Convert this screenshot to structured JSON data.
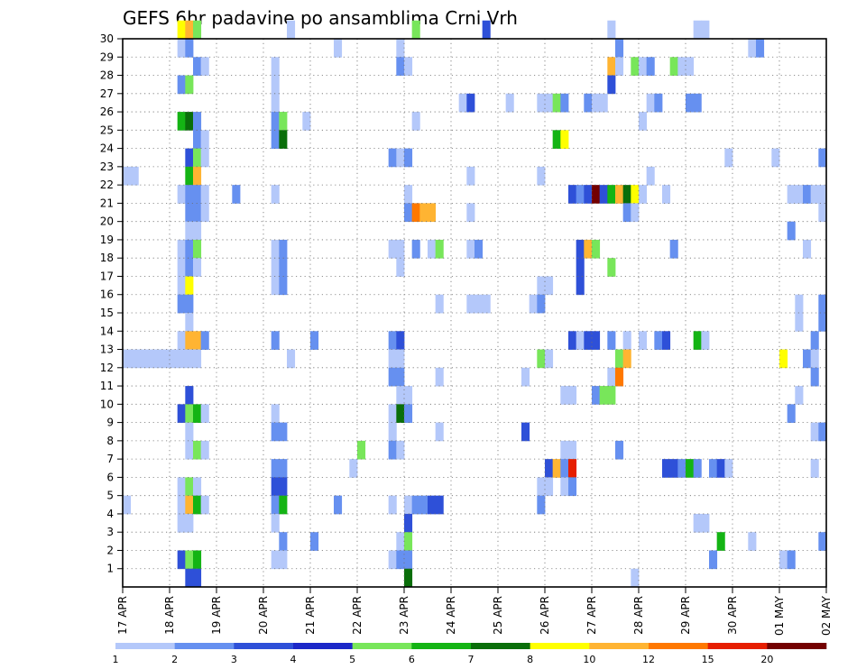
{
  "chart_data": {
    "type": "heatmap",
    "title": "GEFS 6hr padavine po ansamblima Crni Vrh",
    "x_ticks": [
      "17 APR",
      "18 APR",
      "19 APR",
      "20 APR",
      "21 APR",
      "22 APR",
      "23 APR",
      "24 APR",
      "25 APR",
      "26 APR",
      "27 APR",
      "28 APR",
      "29 APR",
      "30 APR",
      "01 MAY",
      "02 MAY"
    ],
    "y_ticks": [
      1,
      2,
      3,
      4,
      5,
      6,
      7,
      8,
      9,
      10,
      11,
      12,
      13,
      14,
      15,
      16,
      17,
      18,
      19,
      20,
      21,
      22,
      23,
      24,
      25,
      26,
      27,
      28,
      29,
      30
    ],
    "x_range": [
      "17 APR 00z",
      "02 MAY 00z"
    ],
    "x_step_hours": 6,
    "y_range": [
      0,
      30
    ],
    "grid": true,
    "legend": {
      "position": "bottom",
      "labels": [
        "1",
        "2",
        "3",
        "4",
        "5",
        "6",
        "7",
        "8",
        "10",
        "12",
        "15",
        "20"
      ],
      "colors": [
        "#b4c8fa",
        "#6690f0",
        "#2e50d8",
        "#1c28c8",
        "#78e65a",
        "#14b414",
        "#0a6e0a",
        "#ffff00",
        "#ffb432",
        "#ff7800",
        "#e61e00",
        "#730000"
      ]
    },
    "cells": [
      [
        30,
        [
          [
            7,
            9
          ],
          [
            8,
            11
          ],
          [
            9,
            5
          ],
          [
            21,
            1
          ],
          [
            37,
            5
          ],
          [
            46,
            3
          ],
          [
            62,
            1
          ],
          [
            73,
            1
          ],
          [
            74,
            1
          ]
        ]
      ],
      [
        29,
        [
          [
            7,
            1
          ],
          [
            8,
            2
          ],
          [
            27,
            1
          ],
          [
            35,
            1
          ],
          [
            63,
            2
          ],
          [
            80,
            1
          ],
          [
            81,
            2
          ]
        ]
      ],
      [
        28,
        [
          [
            9,
            2
          ],
          [
            10,
            1
          ],
          [
            19,
            1
          ],
          [
            35,
            2
          ],
          [
            36,
            1
          ],
          [
            62,
            10
          ],
          [
            63,
            1
          ],
          [
            65,
            5
          ],
          [
            66,
            1
          ],
          [
            67,
            2
          ],
          [
            70,
            5
          ],
          [
            71,
            1
          ],
          [
            72,
            1
          ]
        ]
      ],
      [
        27,
        [
          [
            7,
            2
          ],
          [
            8,
            5
          ],
          [
            19,
            1
          ],
          [
            62,
            3
          ]
        ]
      ],
      [
        26,
        [
          [
            19,
            1
          ],
          [
            43,
            1
          ],
          [
            44,
            3
          ],
          [
            49,
            1
          ],
          [
            53,
            1
          ],
          [
            54,
            1
          ],
          [
            55,
            5
          ],
          [
            56,
            2
          ],
          [
            59,
            2
          ],
          [
            60,
            1
          ],
          [
            61,
            1
          ],
          [
            67,
            1
          ],
          [
            68,
            2
          ],
          [
            72,
            2
          ],
          [
            73,
            2
          ]
        ]
      ],
      [
        25,
        [
          [
            7,
            6
          ],
          [
            8,
            7
          ],
          [
            9,
            2
          ],
          [
            19,
            2
          ],
          [
            20,
            5
          ],
          [
            23,
            1
          ],
          [
            37,
            1
          ],
          [
            66,
            1
          ]
        ]
      ],
      [
        24,
        [
          [
            9,
            2
          ],
          [
            10,
            1
          ],
          [
            19,
            2
          ],
          [
            20,
            7
          ],
          [
            55,
            6
          ],
          [
            56,
            8
          ]
        ]
      ],
      [
        23,
        [
          [
            8,
            3
          ],
          [
            9,
            5
          ],
          [
            10,
            1
          ],
          [
            34,
            2
          ],
          [
            35,
            1
          ],
          [
            36,
            2
          ],
          [
            77,
            1
          ],
          [
            83,
            1
          ],
          [
            89,
            2
          ]
        ]
      ],
      [
        22,
        [
          [
            0,
            1
          ],
          [
            1,
            1
          ],
          [
            8,
            6
          ],
          [
            9,
            10
          ],
          [
            44,
            1
          ],
          [
            53,
            1
          ],
          [
            67,
            1
          ]
        ]
      ],
      [
        21,
        [
          [
            7,
            1
          ],
          [
            8,
            2
          ],
          [
            9,
            2
          ],
          [
            10,
            1
          ],
          [
            14,
            2
          ],
          [
            19,
            1
          ],
          [
            36,
            1
          ],
          [
            57,
            3
          ],
          [
            58,
            2
          ],
          [
            59,
            3
          ],
          [
            60,
            20
          ],
          [
            61,
            3
          ],
          [
            62,
            6
          ],
          [
            63,
            10
          ],
          [
            64,
            7
          ],
          [
            65,
            8
          ],
          [
            66,
            1
          ],
          [
            69,
            1
          ],
          [
            85,
            1
          ],
          [
            86,
            1
          ],
          [
            87,
            2
          ],
          [
            88,
            1
          ],
          [
            89,
            1
          ]
        ]
      ],
      [
        20,
        [
          [
            8,
            2
          ],
          [
            9,
            2
          ],
          [
            10,
            1
          ],
          [
            36,
            2
          ],
          [
            37,
            12
          ],
          [
            38,
            10
          ],
          [
            39,
            10
          ],
          [
            44,
            1
          ],
          [
            64,
            2
          ],
          [
            65,
            1
          ],
          [
            89,
            1
          ]
        ]
      ],
      [
        19,
        [
          [
            8,
            1
          ],
          [
            9,
            1
          ],
          [
            85,
            2
          ]
        ]
      ],
      [
        18,
        [
          [
            7,
            1
          ],
          [
            8,
            2
          ],
          [
            9,
            5
          ],
          [
            19,
            1
          ],
          [
            20,
            2
          ],
          [
            34,
            1
          ],
          [
            35,
            1
          ],
          [
            37,
            2
          ],
          [
            39,
            1
          ],
          [
            40,
            5
          ],
          [
            44,
            1
          ],
          [
            45,
            2
          ],
          [
            58,
            3
          ],
          [
            59,
            10
          ],
          [
            60,
            5
          ],
          [
            70,
            2
          ],
          [
            87,
            1
          ]
        ]
      ],
      [
        17,
        [
          [
            7,
            1
          ],
          [
            8,
            2
          ],
          [
            9,
            1
          ],
          [
            19,
            1
          ],
          [
            20,
            2
          ],
          [
            35,
            1
          ],
          [
            58,
            3
          ],
          [
            62,
            5
          ]
        ]
      ],
      [
        16,
        [
          [
            7,
            1
          ],
          [
            8,
            8
          ],
          [
            19,
            1
          ],
          [
            20,
            2
          ],
          [
            53,
            1
          ],
          [
            54,
            1
          ],
          [
            58,
            3
          ]
        ]
      ],
      [
        15,
        [
          [
            7,
            2
          ],
          [
            8,
            2
          ],
          [
            40,
            1
          ],
          [
            44,
            1
          ],
          [
            45,
            1
          ],
          [
            46,
            1
          ],
          [
            52,
            1
          ],
          [
            53,
            2
          ],
          [
            86,
            1
          ],
          [
            89,
            2
          ]
        ]
      ],
      [
        14,
        [
          [
            8,
            1
          ],
          [
            86,
            1
          ],
          [
            89,
            2
          ]
        ]
      ],
      [
        13,
        [
          [
            7,
            1
          ],
          [
            8,
            10
          ],
          [
            9,
            10
          ],
          [
            10,
            2
          ],
          [
            19,
            2
          ],
          [
            24,
            2
          ],
          [
            34,
            2
          ],
          [
            35,
            3
          ],
          [
            57,
            3
          ],
          [
            58,
            1
          ],
          [
            59,
            3
          ],
          [
            60,
            3
          ],
          [
            62,
            2
          ],
          [
            64,
            1
          ],
          [
            66,
            1
          ],
          [
            68,
            2
          ],
          [
            69,
            3
          ],
          [
            73,
            6
          ],
          [
            74,
            1
          ],
          [
            88,
            2
          ]
        ]
      ],
      [
        12,
        [
          [
            0,
            1
          ],
          [
            1,
            1
          ],
          [
            2,
            1
          ],
          [
            3,
            1
          ],
          [
            4,
            1
          ],
          [
            5,
            1
          ],
          [
            6,
            1
          ],
          [
            7,
            1
          ],
          [
            8,
            1
          ],
          [
            9,
            1
          ],
          [
            21,
            1
          ],
          [
            34,
            1
          ],
          [
            35,
            1
          ],
          [
            53,
            5
          ],
          [
            54,
            1
          ],
          [
            63,
            5
          ],
          [
            64,
            10
          ],
          [
            84,
            8
          ],
          [
            87,
            2
          ],
          [
            88,
            1
          ]
        ]
      ],
      [
        11,
        [
          [
            34,
            2
          ],
          [
            35,
            2
          ],
          [
            40,
            1
          ],
          [
            51,
            1
          ],
          [
            62,
            1
          ],
          [
            63,
            12
          ],
          [
            88,
            2
          ]
        ]
      ],
      [
        10,
        [
          [
            8,
            3
          ],
          [
            35,
            1
          ],
          [
            36,
            1
          ],
          [
            56,
            1
          ],
          [
            57,
            1
          ],
          [
            60,
            2
          ],
          [
            61,
            5
          ],
          [
            62,
            5
          ],
          [
            86,
            1
          ]
        ]
      ],
      [
        9,
        [
          [
            7,
            3
          ],
          [
            8,
            5
          ],
          [
            9,
            6
          ],
          [
            10,
            1
          ],
          [
            19,
            1
          ],
          [
            34,
            1
          ],
          [
            35,
            7
          ],
          [
            36,
            2
          ],
          [
            85,
            2
          ]
        ]
      ],
      [
        8,
        [
          [
            8,
            1
          ],
          [
            19,
            2
          ],
          [
            20,
            2
          ],
          [
            34,
            1
          ],
          [
            40,
            1
          ],
          [
            51,
            3
          ],
          [
            88,
            1
          ],
          [
            89,
            2
          ]
        ]
      ],
      [
        7,
        [
          [
            8,
            1
          ],
          [
            9,
            5
          ],
          [
            10,
            1
          ],
          [
            30,
            5
          ],
          [
            34,
            2
          ],
          [
            35,
            1
          ],
          [
            56,
            1
          ],
          [
            57,
            1
          ],
          [
            63,
            2
          ]
        ]
      ],
      [
        6,
        [
          [
            19,
            2
          ],
          [
            20,
            2
          ],
          [
            29,
            1
          ],
          [
            54,
            3
          ],
          [
            55,
            10
          ],
          [
            56,
            2
          ],
          [
            57,
            15
          ],
          [
            69,
            3
          ],
          [
            70,
            3
          ],
          [
            71,
            2
          ],
          [
            72,
            6
          ],
          [
            73,
            2
          ],
          [
            75,
            2
          ],
          [
            76,
            3
          ],
          [
            77,
            1
          ],
          [
            88,
            1
          ]
        ]
      ],
      [
        5,
        [
          [
            7,
            1
          ],
          [
            8,
            5
          ],
          [
            9,
            1
          ],
          [
            19,
            3
          ],
          [
            20,
            3
          ],
          [
            53,
            1
          ],
          [
            54,
            1
          ],
          [
            56,
            1
          ],
          [
            57,
            2
          ]
        ]
      ],
      [
        4,
        [
          [
            0,
            1
          ],
          [
            7,
            1
          ],
          [
            8,
            10
          ],
          [
            9,
            6
          ],
          [
            10,
            1
          ],
          [
            19,
            2
          ],
          [
            20,
            6
          ],
          [
            27,
            2
          ],
          [
            34,
            1
          ],
          [
            36,
            1
          ],
          [
            37,
            2
          ],
          [
            38,
            2
          ],
          [
            39,
            3
          ],
          [
            40,
            3
          ],
          [
            53,
            2
          ]
        ]
      ],
      [
        3,
        [
          [
            7,
            1
          ],
          [
            8,
            1
          ],
          [
            19,
            1
          ],
          [
            36,
            3
          ],
          [
            73,
            1
          ],
          [
            74,
            1
          ]
        ]
      ],
      [
        2,
        [
          [
            20,
            2
          ],
          [
            24,
            2
          ],
          [
            35,
            1
          ],
          [
            36,
            5
          ],
          [
            76,
            6
          ],
          [
            80,
            1
          ],
          [
            89,
            2
          ]
        ]
      ],
      [
        1,
        [
          [
            7,
            3
          ],
          [
            8,
            5
          ],
          [
            9,
            6
          ],
          [
            19,
            1
          ],
          [
            20,
            1
          ],
          [
            34,
            1
          ],
          [
            35,
            2
          ],
          [
            36,
            2
          ],
          [
            75,
            2
          ],
          [
            84,
            1
          ],
          [
            85,
            2
          ]
        ]
      ],
      [
        0,
        [
          [
            8,
            3
          ],
          [
            9,
            3
          ],
          [
            36,
            7
          ],
          [
            65,
            1
          ]
        ]
      ]
    ]
  }
}
